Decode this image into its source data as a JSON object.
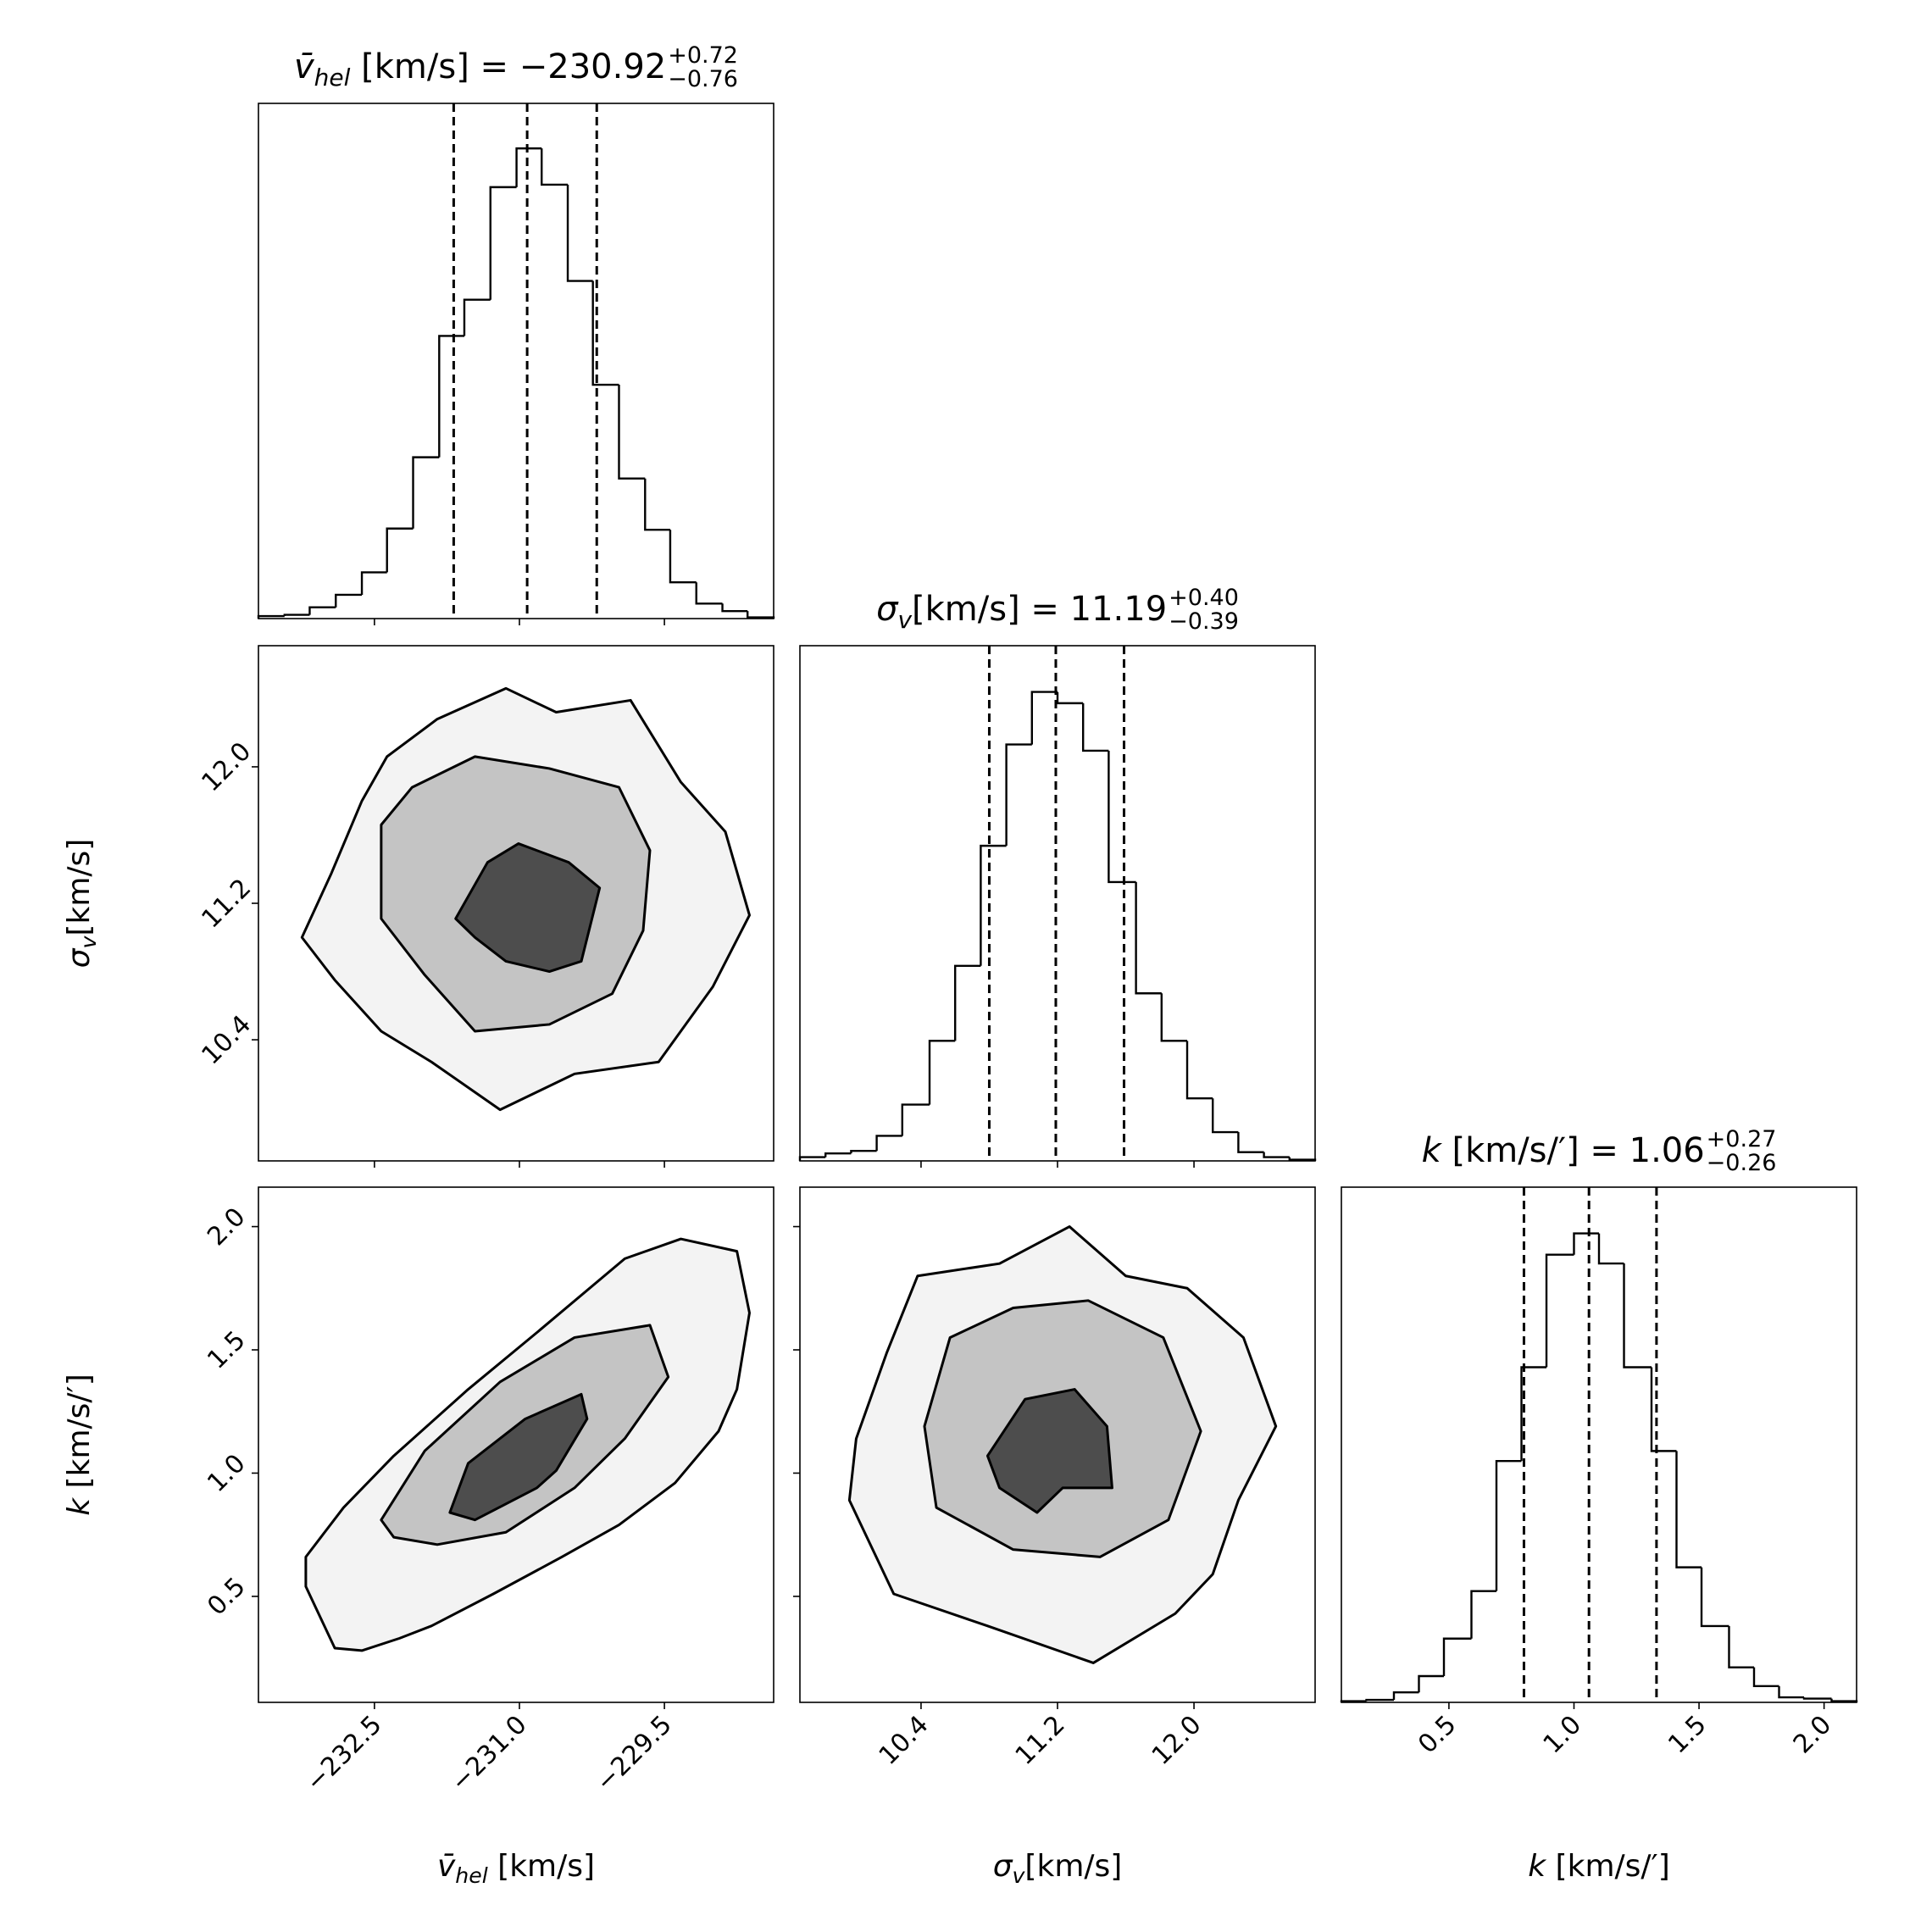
{
  "chart_data": [
    {
      "type": "histogram",
      "title": {
        "symbol": "v̄",
        "sub": "hel",
        "unit": " [km/s] = ",
        "value": "−230.92",
        "upper": "+0.72",
        "lower": "−0.76"
      },
      "bins": [
        -233.7,
        -233.43,
        -233.17,
        -232.9,
        -232.63,
        -232.37,
        -232.1,
        -231.83,
        -231.57,
        -231.3,
        -231.03,
        -230.77,
        -230.5,
        -230.24,
        -229.97,
        -229.7,
        -229.44,
        -229.17,
        -228.9,
        -228.64,
        -228.37
      ],
      "counts": [
        2,
        3,
        9,
        19,
        37,
        72,
        129,
        226,
        255,
        345,
        376,
        347,
        270,
        187,
        112,
        71,
        29,
        12,
        6,
        1
      ],
      "quantiles": [
        -231.68,
        -230.92,
        -230.2
      ],
      "xlim": [
        -233.7,
        -228.37
      ],
      "ylim": [
        0,
        412
      ],
      "xticks": [
        -232.5,
        -231,
        -229.5
      ],
      "color": "#000000"
    },
    {
      "type": "contour",
      "xlim": [
        -233.7,
        -228.37
      ],
      "ylim": [
        9.69,
        12.71
      ],
      "xticks": [
        -232.5,
        -231,
        -229.5
      ],
      "yticks": [
        10.4,
        11.2,
        {
          "value": 12,
          "label": "12.0"
        }
      ],
      "ylabel": {
        "symbol": "σ",
        "sub": "v",
        "unit": "[km/s]"
      },
      "color": "#000000",
      "fill_colors": [
        "#f3f3f3",
        "#c4c4c4",
        "#4d4d4d"
      ],
      "contours": [
        {
          "x": [
            -233.25,
            -232.95,
            -232.63,
            -232.37,
            -231.85,
            -231.14,
            -230.62,
            -229.85,
            -229.33,
            -228.87,
            -228.62,
            -229.0,
            -229.56,
            -230.43,
            -231.2,
            -231.91,
            -232.43,
            -232.91
          ],
          "y": [
            11.0,
            11.37,
            11.8,
            12.06,
            12.28,
            12.46,
            12.32,
            12.39,
            11.91,
            11.62,
            11.13,
            10.71,
            10.27,
            10.2,
            9.99,
            10.27,
            10.45,
            10.75
          ]
        },
        {
          "x": [
            -232.43,
            -232.43,
            -232.11,
            -231.46,
            -230.69,
            -229.97,
            -229.65,
            -229.72,
            -230.04,
            -230.69,
            -231.46,
            -231.98
          ],
          "y": [
            11.11,
            11.66,
            11.88,
            12.06,
            11.99,
            11.88,
            11.51,
            11.04,
            10.67,
            10.49,
            10.45,
            10.78
          ]
        },
        {
          "x": [
            -231.66,
            -231.33,
            -231.01,
            -230.49,
            -230.17,
            -230.36,
            -230.69,
            -231.14,
            -231.46
          ],
          "y": [
            11.11,
            11.44,
            11.55,
            11.44,
            11.29,
            10.86,
            10.8,
            10.86,
            11.0
          ]
        }
      ]
    },
    {
      "type": "histogram",
      "title": {
        "symbol": "σ",
        "sub": "v",
        "unit": "[km/s] = ",
        "value": "11.19",
        "upper": "+0.40",
        "lower": "−0.39"
      },
      "bins": [
        9.69,
        9.84,
        9.99,
        10.14,
        10.29,
        10.45,
        10.6,
        10.75,
        10.9,
        11.05,
        11.2,
        11.35,
        11.5,
        11.66,
        11.81,
        11.96,
        12.11,
        12.26,
        12.41,
        12.56,
        12.71
      ],
      "counts": [
        3,
        6,
        8,
        20,
        45,
        96,
        156,
        252,
        333,
        375,
        366,
        328,
        223,
        134,
        96,
        50,
        23,
        7,
        3,
        1
      ],
      "quantiles": [
        10.8,
        11.19,
        11.59
      ],
      "xlim": [
        9.69,
        12.71
      ],
      "ylim": [
        0,
        412
      ],
      "xticks": [
        10.4,
        11.2,
        12
      ],
      "color": "#000000"
    },
    {
      "type": "contour",
      "xlim": [
        -233.7,
        -228.37
      ],
      "ylim": [
        0.07,
        2.16
      ],
      "xticks": [
        {
          "value": -232.5,
          "label": "−232.5"
        },
        {
          "value": -231,
          "label": "−231.0"
        },
        {
          "value": -229.5,
          "label": "−229.5"
        }
      ],
      "yticks": [
        0.5,
        {
          "value": 1,
          "label": "1.0"
        },
        1.5,
        {
          "value": 2,
          "label": "2.0"
        }
      ],
      "xlabel": {
        "symbol": "v̄",
        "sub": "hel",
        "unit": " [km/s]"
      },
      "ylabel": {
        "symbol": "k",
        "unit": " [km/s/′]"
      },
      "color": "#000000",
      "fill_colors": [
        "#f3f3f3",
        "#c4c4c4",
        "#4d4d4d"
      ],
      "contours": [
        {
          "x": [
            -233.21,
            -233.21,
            -232.82,
            -232.3,
            -231.53,
            -230.82,
            -229.91,
            -229.33,
            -228.75,
            -228.62,
            -228.75,
            -228.94,
            -229.39,
            -229.97,
            -230.56,
            -231.27,
            -231.91,
            -232.24,
            -232.63,
            -232.91
          ],
          "y": [
            0.54,
            0.66,
            0.86,
            1.07,
            1.34,
            1.57,
            1.87,
            1.95,
            1.9,
            1.65,
            1.34,
            1.17,
            0.96,
            0.79,
            0.66,
            0.51,
            0.38,
            0.33,
            0.28,
            0.29
          ]
        },
        {
          "x": [
            -232.43,
            -231.98,
            -231.2,
            -230.43,
            -229.65,
            -229.46,
            -229.91,
            -230.43,
            -231.14,
            -231.85,
            -232.3
          ],
          "y": [
            0.81,
            1.09,
            1.37,
            1.55,
            1.6,
            1.39,
            1.14,
            0.94,
            0.76,
            0.71,
            0.74
          ]
        },
        {
          "x": [
            -231.72,
            -231.53,
            -230.94,
            -230.36,
            -230.3,
            -230.62,
            -230.82,
            -231.46
          ],
          "y": [
            0.84,
            1.04,
            1.22,
            1.32,
            1.22,
            1.01,
            0.94,
            0.81
          ]
        }
      ]
    },
    {
      "type": "contour",
      "xlim": [
        9.69,
        12.71
      ],
      "ylim": [
        0.07,
        2.16
      ],
      "xticks": [
        10.4,
        11.2,
        {
          "value": 12,
          "label": "12.0"
        }
      ],
      "yticks": [
        0.5,
        1,
        1.5,
        2
      ],
      "xlabel": {
        "symbol": "σ",
        "sub": "v",
        "unit": "[km/s]"
      },
      "color": "#000000",
      "fill_colors": [
        "#f3f3f3",
        "#c4c4c4",
        "#4d4d4d"
      ],
      "contours": [
        {
          "x": [
            10.02,
            10.2,
            10.38,
            10.86,
            11.27,
            11.6,
            11.96,
            12.29,
            12.48,
            12.26,
            12.11,
            11.89,
            11.41,
            10.79,
            10.24,
            9.98
          ],
          "y": [
            1.14,
            1.49,
            1.8,
            1.85,
            2.0,
            1.8,
            1.75,
            1.55,
            1.19,
            0.89,
            0.59,
            0.43,
            0.23,
            0.38,
            0.51,
            0.89
          ]
        },
        {
          "x": [
            10.42,
            10.57,
            10.94,
            11.38,
            11.82,
            12.04,
            11.85,
            11.45,
            10.94,
            10.49
          ],
          "y": [
            1.19,
            1.55,
            1.67,
            1.7,
            1.55,
            1.17,
            0.81,
            0.66,
            0.69,
            0.86
          ]
        },
        {
          "x": [
            10.79,
            11.01,
            11.3,
            11.49,
            11.52,
            11.23,
            11.08,
            10.86
          ],
          "y": [
            1.07,
            1.3,
            1.34,
            1.19,
            0.94,
            0.94,
            0.84,
            0.94
          ]
        }
      ]
    },
    {
      "type": "histogram",
      "title": {
        "symbol": "k",
        "unit": " [km/s/′] = ",
        "value": "1.06",
        "upper": "+0.27",
        "lower": "−0.26"
      },
      "bins": [
        0.07,
        0.17,
        0.28,
        0.38,
        0.48,
        0.59,
        0.69,
        0.79,
        0.89,
        1.0,
        1.1,
        1.2,
        1.31,
        1.41,
        1.51,
        1.62,
        1.72,
        1.82,
        1.92,
        2.03,
        2.13
      ],
      "counts": [
        1,
        2,
        8,
        21,
        51,
        89,
        193,
        268,
        358,
        375,
        351,
        268,
        201,
        108,
        61,
        28,
        13,
        4,
        3,
        1
      ],
      "quantiles": [
        0.8,
        1.06,
        1.33
      ],
      "xlim": [
        0.07,
        2.13
      ],
      "ylim": [
        0,
        412
      ],
      "xticks": [
        0.5,
        {
          "value": 1,
          "label": "1.0"
        },
        1.5,
        {
          "value": 2,
          "label": "2.0"
        }
      ],
      "xlabel": {
        "symbol": "k",
        "unit": " [km/s/′]"
      },
      "color": "#000000"
    }
  ]
}
